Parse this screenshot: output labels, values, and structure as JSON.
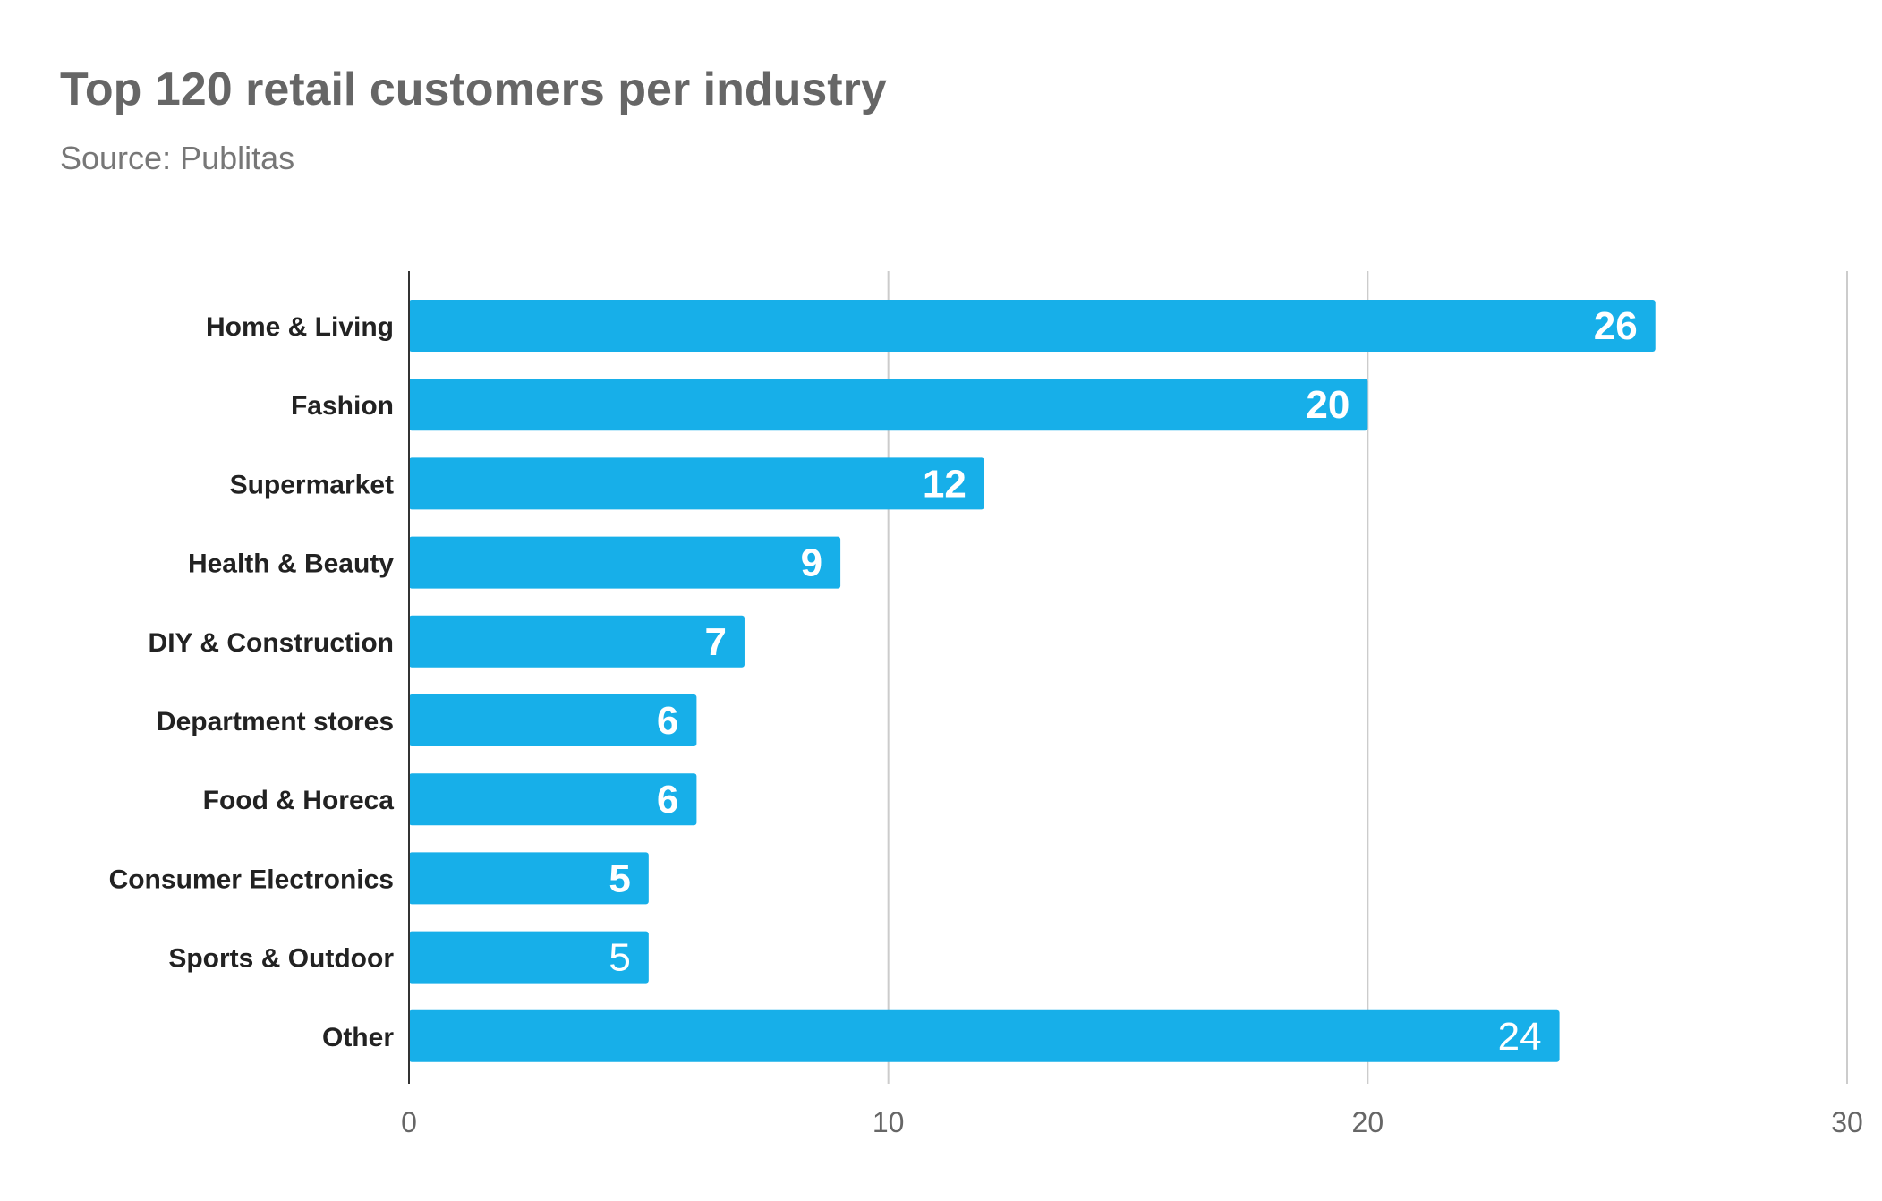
{
  "chart_data": {
    "type": "bar",
    "orientation": "horizontal",
    "title": "Top 120 retail customers per industry",
    "subtitle": "Source: Publitas",
    "categories": [
      "Home & Living",
      "Fashion",
      "Supermarket",
      "Health & Beauty",
      "DIY & Construction",
      "Department stores",
      "Food & Horeca",
      "Consumer Electronics",
      "Sports & Outdoor",
      "Other"
    ],
    "values": [
      26,
      20,
      12,
      9,
      7,
      6,
      6,
      5,
      5,
      24
    ],
    "xlim": [
      0,
      30
    ],
    "xticks": [
      "0",
      "10",
      "20",
      "30"
    ],
    "xlabel": "",
    "ylabel": "",
    "grid": true,
    "legend": "none",
    "bar_color": "#17afe9",
    "data_labels": true
  }
}
